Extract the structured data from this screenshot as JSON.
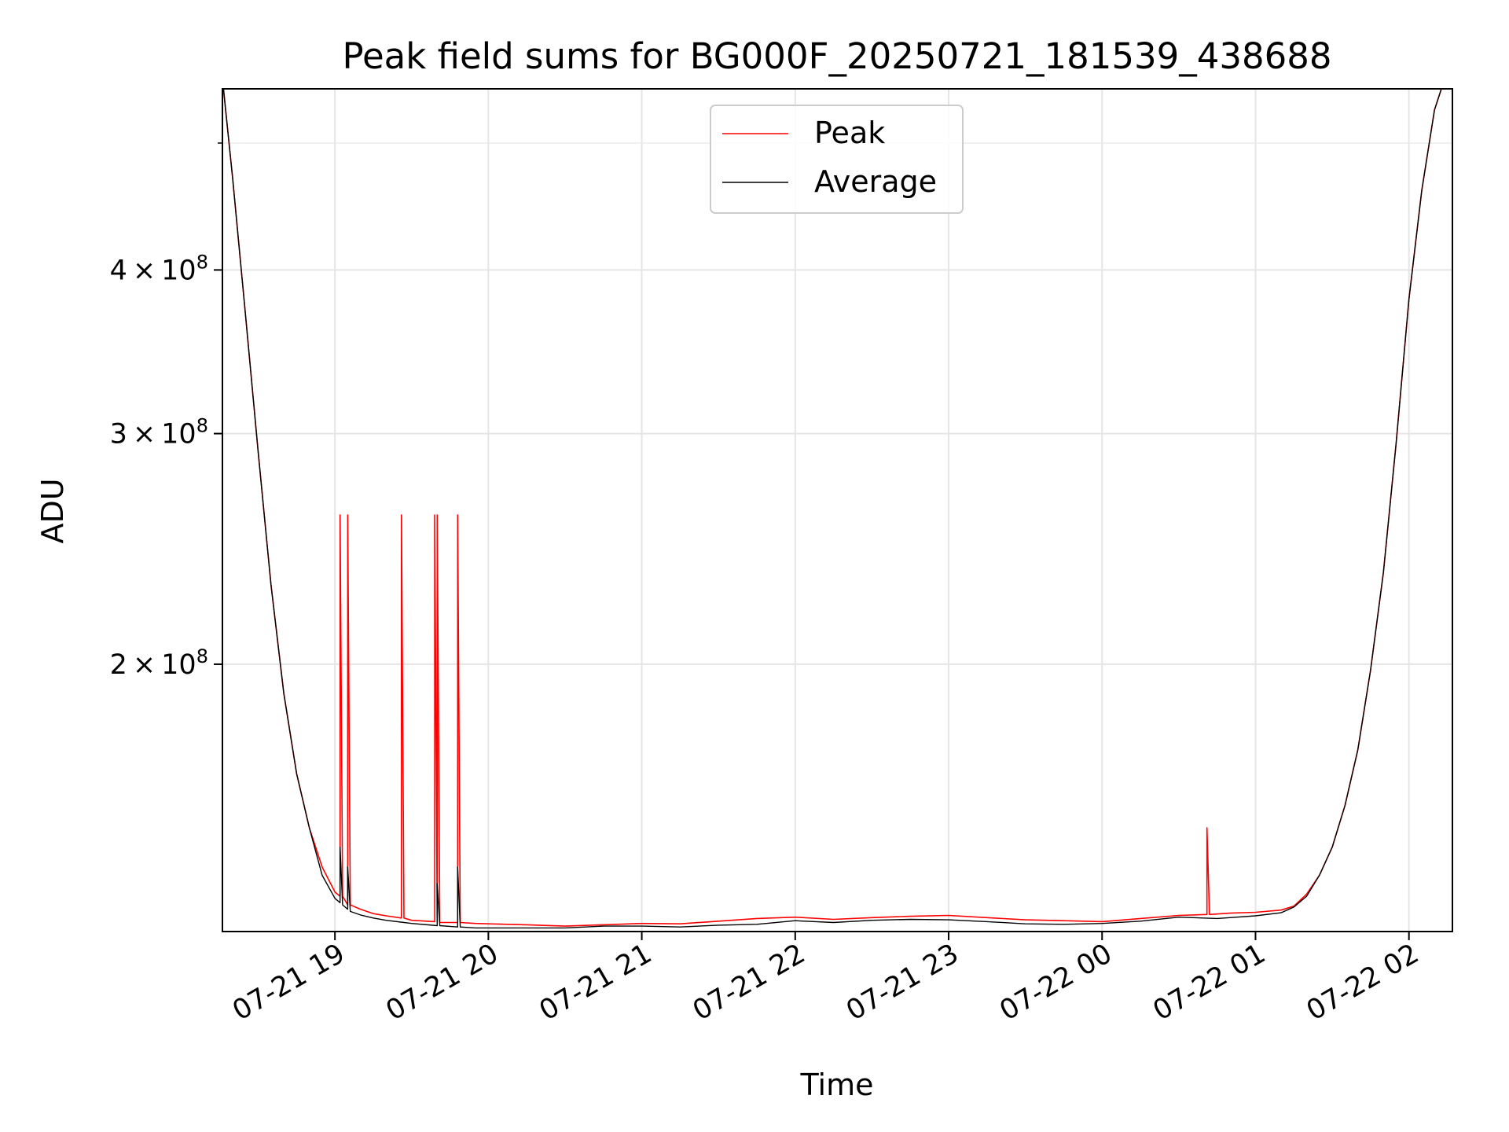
{
  "chart_data": {
    "type": "line",
    "title": "Peak field sums for BG000F_20250721_181539_438688",
    "xlabel": "Time",
    "ylabel": "ADU",
    "y_scale": "log",
    "xlim": [
      "2025-07-21 18:16",
      "2025-07-22 02:17"
    ],
    "ylim": [
      125000000,
      550000000
    ],
    "grid": true,
    "legend_position": "upper center",
    "x_ticks": [
      {
        "value": "2025-07-21 19:00",
        "label": "07-21 19"
      },
      {
        "value": "2025-07-21 20:00",
        "label": "07-21 20"
      },
      {
        "value": "2025-07-21 21:00",
        "label": "07-21 21"
      },
      {
        "value": "2025-07-21 22:00",
        "label": "07-21 22"
      },
      {
        "value": "2025-07-21 23:00",
        "label": "07-21 23"
      },
      {
        "value": "2025-07-22 00:00",
        "label": "07-22 00"
      },
      {
        "value": "2025-07-22 01:00",
        "label": "07-22 01"
      },
      {
        "value": "2025-07-22 02:00",
        "label": "07-22 02"
      }
    ],
    "y_ticks": [
      {
        "value": 200000000,
        "mantissa": "2",
        "exponent": "8"
      },
      {
        "value": 300000000,
        "mantissa": "3",
        "exponent": "8"
      },
      {
        "value": 400000000,
        "mantissa": "4",
        "exponent": "8"
      }
    ],
    "y_minor_ticks": [
      500000000
    ],
    "series": [
      {
        "name": "Peak",
        "color": "#ff0000",
        "x": [
          "2025-07-21 18:16",
          "2025-07-21 18:20",
          "2025-07-21 18:25",
          "2025-07-21 18:30",
          "2025-07-21 18:35",
          "2025-07-21 18:40",
          "2025-07-21 18:45",
          "2025-07-21 18:50",
          "2025-07-21 18:55",
          "2025-07-21 19:00",
          "2025-07-21 19:02",
          "2025-07-21 19:02",
          "2025-07-21 19:03",
          "2025-07-21 19:04",
          "2025-07-21 19:05",
          "2025-07-21 19:05",
          "2025-07-21 19:06",
          "2025-07-21 19:10",
          "2025-07-21 19:15",
          "2025-07-21 19:20",
          "2025-07-21 19:26",
          "2025-07-21 19:26",
          "2025-07-21 19:27",
          "2025-07-21 19:30",
          "2025-07-21 19:39",
          "2025-07-21 19:39",
          "2025-07-21 19:40",
          "2025-07-21 19:40",
          "2025-07-21 19:41",
          "2025-07-21 19:45",
          "2025-07-21 19:48",
          "2025-07-21 19:48",
          "2025-07-21 19:49",
          "2025-07-21 19:55",
          "2025-07-21 20:00",
          "2025-07-21 20:15",
          "2025-07-21 20:30",
          "2025-07-21 20:45",
          "2025-07-21 21:00",
          "2025-07-21 21:15",
          "2025-07-21 21:30",
          "2025-07-21 21:45",
          "2025-07-21 22:00",
          "2025-07-21 22:15",
          "2025-07-21 22:30",
          "2025-07-21 22:45",
          "2025-07-21 23:00",
          "2025-07-21 23:15",
          "2025-07-21 23:30",
          "2025-07-21 23:45",
          "2025-07-22 00:00",
          "2025-07-22 00:15",
          "2025-07-22 00:30",
          "2025-07-22 00:41",
          "2025-07-22 00:41",
          "2025-07-22 00:42",
          "2025-07-22 00:50",
          "2025-07-22 01:00",
          "2025-07-22 01:10",
          "2025-07-22 01:15",
          "2025-07-22 01:20",
          "2025-07-22 01:25",
          "2025-07-22 01:30",
          "2025-07-22 01:35",
          "2025-07-22 01:40",
          "2025-07-22 01:45",
          "2025-07-22 01:50",
          "2025-07-22 01:55",
          "2025-07-22 02:00",
          "2025-07-22 02:05",
          "2025-07-22 02:10",
          "2025-07-22 02:14"
        ],
        "y": [
          560000000,
          470000000,
          370000000,
          290000000,
          230000000,
          190000000,
          165000000,
          150000000,
          140000000,
          134000000,
          133000000,
          260000000,
          133000000,
          132000000,
          131000000,
          260000000,
          131000000,
          130000000,
          129000000,
          128500000,
          128000000,
          260000000,
          128000000,
          127500000,
          127200000,
          260000000,
          127200000,
          260000000,
          127000000,
          127000000,
          127000000,
          260000000,
          127000000,
          126800000,
          126700000,
          126500000,
          126200000,
          126500000,
          126800000,
          126700000,
          127300000,
          127900000,
          128200000,
          127700000,
          128100000,
          128400000,
          128600000,
          128100000,
          127600000,
          127400000,
          127200000,
          127900000,
          128600000,
          128800000,
          150000000,
          128800000,
          129100000,
          129300000,
          129800000,
          130700000,
          133500000,
          138000000,
          145000000,
          156000000,
          172000000,
          198000000,
          235000000,
          295000000,
          380000000,
          460000000,
          530000000,
          560000000
        ]
      },
      {
        "name": "Average",
        "color": "#000000",
        "x": [
          "2025-07-21 18:16",
          "2025-07-21 18:20",
          "2025-07-21 18:25",
          "2025-07-21 18:30",
          "2025-07-21 18:35",
          "2025-07-21 18:40",
          "2025-07-21 18:45",
          "2025-07-21 18:50",
          "2025-07-21 18:55",
          "2025-07-21 19:00",
          "2025-07-21 19:02",
          "2025-07-21 19:02",
          "2025-07-21 19:03",
          "2025-07-21 19:05",
          "2025-07-21 19:05",
          "2025-07-21 19:06",
          "2025-07-21 19:10",
          "2025-07-21 19:15",
          "2025-07-21 19:20",
          "2025-07-21 19:30",
          "2025-07-21 19:40",
          "2025-07-21 19:40",
          "2025-07-21 19:41",
          "2025-07-21 19:48",
          "2025-07-21 19:48",
          "2025-07-21 19:49",
          "2025-07-21 19:55",
          "2025-07-21 20:00",
          "2025-07-21 20:15",
          "2025-07-21 20:30",
          "2025-07-21 20:45",
          "2025-07-21 21:00",
          "2025-07-21 21:15",
          "2025-07-21 21:30",
          "2025-07-21 21:45",
          "2025-07-21 22:00",
          "2025-07-21 22:15",
          "2025-07-21 22:30",
          "2025-07-21 22:45",
          "2025-07-21 23:00",
          "2025-07-21 23:15",
          "2025-07-21 23:30",
          "2025-07-21 23:45",
          "2025-07-22 00:00",
          "2025-07-22 00:15",
          "2025-07-22 00:30",
          "2025-07-22 00:45",
          "2025-07-22 00:50",
          "2025-07-22 01:00",
          "2025-07-22 01:10",
          "2025-07-22 01:15",
          "2025-07-22 01:20",
          "2025-07-22 01:25",
          "2025-07-22 01:30",
          "2025-07-22 01:35",
          "2025-07-22 01:40",
          "2025-07-22 01:45",
          "2025-07-22 01:50",
          "2025-07-22 01:55",
          "2025-07-22 02:00",
          "2025-07-22 02:05",
          "2025-07-22 02:10",
          "2025-07-22 02:14"
        ],
        "y": [
          560000000,
          470000000,
          370000000,
          290000000,
          230000000,
          190000000,
          165000000,
          150000000,
          138000000,
          132500000,
          131500000,
          145000000,
          131000000,
          130000000,
          140000000,
          129500000,
          128700000,
          128000000,
          127500000,
          126800000,
          126300000,
          136000000,
          126300000,
          126000000,
          140000000,
          126000000,
          125800000,
          125800000,
          125800000,
          125800000,
          126200000,
          126200000,
          126000000,
          126400000,
          126600000,
          127400000,
          127000000,
          127500000,
          127700000,
          127600000,
          127200000,
          126700000,
          126600000,
          126800000,
          127300000,
          128200000,
          127900000,
          128100000,
          128500000,
          129200000,
          130500000,
          133000000,
          138000000,
          145000000,
          156000000,
          172000000,
          198000000,
          235000000,
          295000000,
          380000000,
          460000000,
          530000000,
          560000000
        ]
      }
    ]
  }
}
